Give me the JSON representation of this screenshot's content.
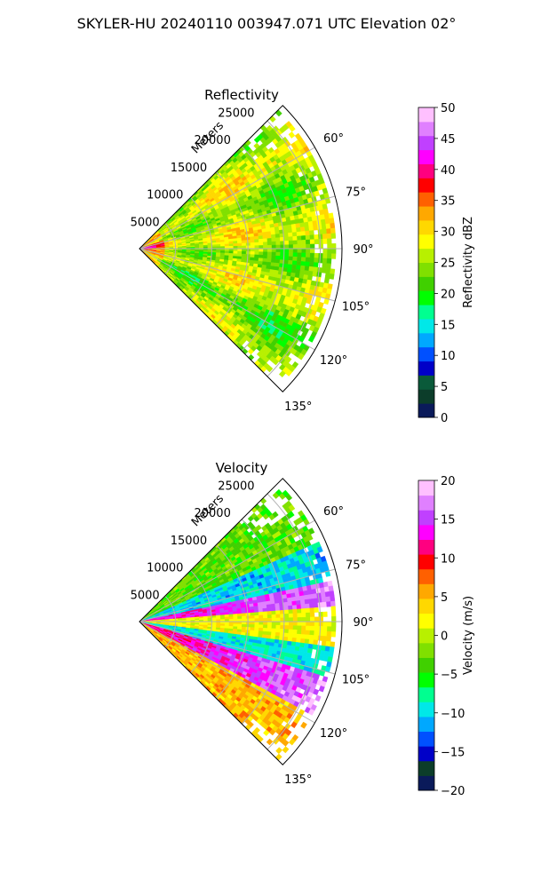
{
  "figure": {
    "suptitle": "SKYLER-HU  20240110  003947.071 UTC Elevation 02°"
  },
  "chart_data": [
    {
      "type": "polar-sector",
      "title": "Reflectivity",
      "radial_axis_label": "Meters",
      "radial_ticks": [
        5000,
        10000,
        15000,
        20000,
        25000
      ],
      "radial_tick_labels": [
        "5000",
        "10000",
        "15000",
        "20000",
        "25000"
      ],
      "radial_max": 28000,
      "azimuth_range_deg": [
        45,
        135
      ],
      "azimuth_ticks_deg": [
        60,
        75,
        90,
        105,
        120,
        135
      ],
      "azimuth_tick_labels": [
        "60°",
        "75°",
        "90°",
        "105°",
        "120°",
        "135°"
      ],
      "grid": true,
      "colorbar": {
        "label": "Reflectivity dBZ",
        "range": [
          0,
          50
        ],
        "ticks": [
          0,
          5,
          10,
          15,
          20,
          25,
          30,
          35,
          40,
          45,
          50
        ],
        "tick_labels": [
          "0",
          "5",
          "10",
          "15",
          "20",
          "25",
          "30",
          "35",
          "40",
          "45",
          "50"
        ],
        "colors": [
          "#0a1a5a",
          "#0c3d2a",
          "#0a5a3a",
          "#0000c8",
          "#0050ff",
          "#00a8ff",
          "#00e8e8",
          "#00ff90",
          "#00ff00",
          "#40d000",
          "#80e000",
          "#b8f000",
          "#ffff00",
          "#ffd800",
          "#ffa800",
          "#ff6000",
          "#ff0000",
          "#ff0080",
          "#ff00ff",
          "#c040ff",
          "#e080ff",
          "#ffc0ff"
        ]
      },
      "field_summary": "Mostly 20-30 dBZ (yellow/green) with 30-37 dBZ (orange/red) near radar"
    },
    {
      "type": "polar-sector",
      "title": "Velocity",
      "radial_axis_label": "Meters",
      "radial_ticks": [
        5000,
        10000,
        15000,
        20000,
        25000
      ],
      "radial_tick_labels": [
        "5000",
        "10000",
        "15000",
        "20000",
        "25000"
      ],
      "radial_max": 28000,
      "azimuth_range_deg": [
        45,
        135
      ],
      "azimuth_ticks_deg": [
        60,
        75,
        90,
        105,
        120,
        135
      ],
      "azimuth_tick_labels": [
        "60°",
        "75°",
        "90°",
        "105°",
        "120°",
        "135°"
      ],
      "grid": true,
      "colorbar": {
        "label": "Velocity (m/s)",
        "range": [
          -20,
          20
        ],
        "ticks": [
          -20,
          -15,
          -10,
          -5,
          0,
          5,
          10,
          15,
          20
        ],
        "tick_labels": [
          "−20",
          "−15",
          "−10",
          "−5",
          "0",
          "5",
          "10",
          "15",
          "20"
        ],
        "colors": [
          "#0a1a5a",
          "#0c3d2a",
          "#0000c8",
          "#0050ff",
          "#00a8ff",
          "#00e8e8",
          "#00ff90",
          "#00ff00",
          "#40d000",
          "#80e000",
          "#b8f000",
          "#ffff00",
          "#ffd800",
          "#ffa800",
          "#ff6000",
          "#ff0000",
          "#ff0080",
          "#ff00ff",
          "#c040ff",
          "#e080ff",
          "#ffc0ff"
        ]
      },
      "field_summary": "Banded structure: yellow/orange along center azimuth, cyan/green bands, magenta/red toward 110-130°"
    }
  ]
}
